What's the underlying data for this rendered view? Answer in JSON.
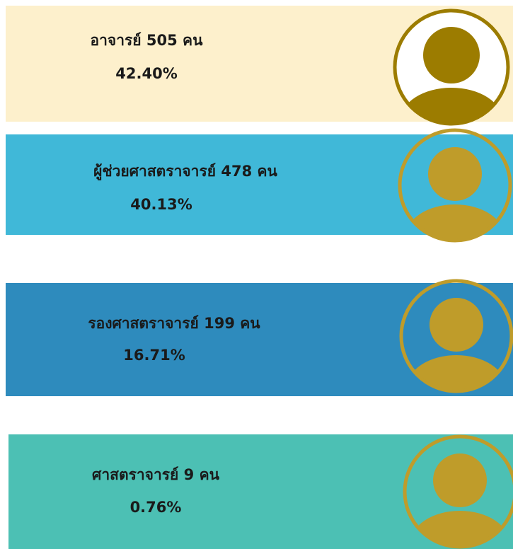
{
  "items": [
    {
      "label": "อาจารย์ 505 คน",
      "percent": "42.40%"
    },
    {
      "label": "ผู้ช่วยศาสตราจารย์ 478 คน",
      "percent": "40.13%"
    },
    {
      "label": "รองศาสตราจารย์ 199 คน",
      "percent": "16.71%"
    },
    {
      "label": "ศาสตราจารย์ 9 คน",
      "percent": "0.76%"
    }
  ]
}
